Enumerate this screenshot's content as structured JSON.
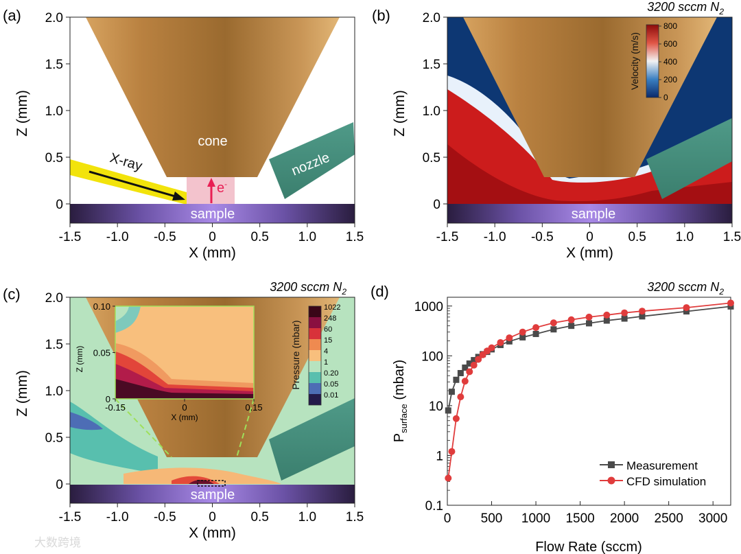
{
  "panels": {
    "a": {
      "label": "(a)",
      "cone": "cone",
      "nozzle": "nozzle",
      "xray": "X-ray",
      "electron": "e",
      "electron_sup": "-",
      "sample": "sample"
    },
    "b": {
      "label": "(b)",
      "condition": "3200 sccm N",
      "condition_sub": "2",
      "sample": "sample",
      "colorbar": {
        "title": "Velocity (m/s)",
        "ticks": [
          "800",
          "600",
          "400",
          "200",
          "0"
        ]
      }
    },
    "c": {
      "label": "(c)",
      "condition": "3200 sccm N",
      "condition_sub": "2",
      "sample": "sample",
      "colorbar": {
        "title": "Pressure (mbar)",
        "ticks": [
          "1022",
          "248",
          "60",
          "15",
          "4",
          "1",
          "0.20",
          "0.05",
          "0.01"
        ]
      },
      "inset": {
        "x_ticks": [
          "-0.15",
          "0",
          "0.15"
        ],
        "y_ticks": [
          "0.10",
          "0.05",
          "0"
        ],
        "xlabel": "X (mm)",
        "ylabel": "Z (mm)"
      }
    },
    "d": {
      "label": "(d)",
      "condition": "3200 sccm N",
      "condition_sub": "2"
    }
  },
  "spatial_axes": {
    "x_ticks": [
      "-1.5",
      "-1.0",
      "-0.5",
      "0",
      "0.5",
      "1.0",
      "1.5"
    ],
    "y_ticks": [
      "2.0",
      "1.5",
      "1.0",
      "0.5",
      "0"
    ],
    "xlabel": "X (mm)",
    "ylabel": "Z (mm)"
  },
  "chart_data": {
    "type": "line",
    "title": "3200 sccm N2",
    "xlabel": "Flow Rate (sccm)",
    "ylabel_main": "P",
    "ylabel_sub": "surface",
    "ylabel_unit": " (mbar)",
    "xlim": [
      0,
      3200
    ],
    "ylim": [
      0.1,
      1500
    ],
    "yscale": "log",
    "x_ticks": [
      "0",
      "500",
      "1000",
      "1500",
      "2000",
      "2500",
      "3000"
    ],
    "y_ticks": [
      "1000",
      "100",
      "10",
      "1",
      "0.1"
    ],
    "legend_position": "bottom-right",
    "series": [
      {
        "name": "Measurement",
        "color": "#4a4a4a",
        "marker": "square",
        "x": [
          10,
          50,
          100,
          150,
          200,
          250,
          300,
          350,
          400,
          450,
          500,
          600,
          700,
          850,
          1000,
          1200,
          1400,
          1600,
          1800,
          2000,
          2200,
          2700,
          3200
        ],
        "y": [
          8,
          19,
          33,
          45,
          58,
          70,
          82,
          95,
          108,
          120,
          135,
          165,
          195,
          235,
          275,
          340,
          400,
          450,
          510,
          560,
          620,
          780,
          980
        ]
      },
      {
        "name": "CFD simulation",
        "color": "#e03c3c",
        "marker": "circle",
        "x": [
          10,
          50,
          100,
          150,
          200,
          250,
          300,
          350,
          400,
          450,
          500,
          600,
          700,
          850,
          1000,
          1200,
          1400,
          1600,
          1800,
          2000,
          2200,
          2700,
          3200
        ],
        "y": [
          0.35,
          1.2,
          5.5,
          15,
          31,
          48,
          65,
          85,
          105,
          125,
          145,
          185,
          230,
          300,
          370,
          460,
          530,
          600,
          660,
          730,
          790,
          930,
          1150
        ]
      }
    ]
  },
  "watermark": "大数跨境"
}
